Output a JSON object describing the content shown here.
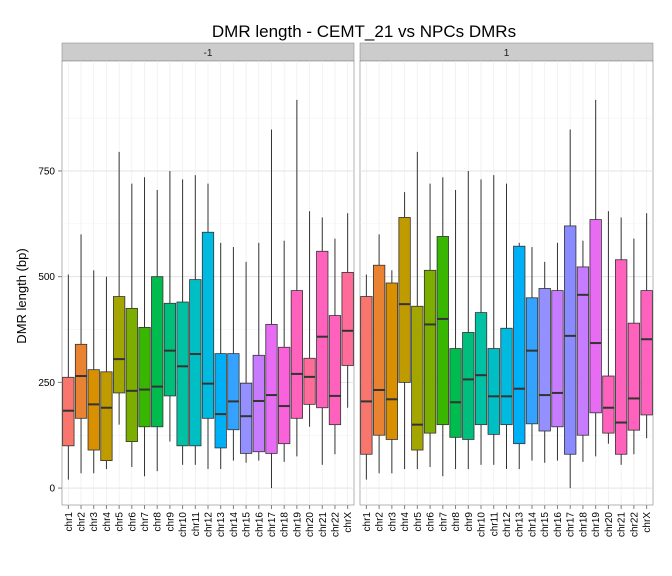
{
  "chart_data": {
    "type": "boxplot",
    "title": "DMR length - CEMT_21 vs NPCs DMRs",
    "xlabel": "",
    "ylabel": "DMR length (bp)",
    "ylim": [
      -40,
      1010
    ],
    "yticks": [
      0,
      250,
      500,
      750
    ],
    "grid": true,
    "facets": [
      {
        "label": "-1",
        "boxes": [
          {
            "category": "chr1",
            "color": "#F8766D",
            "min": 20,
            "q1": 100,
            "median": 183,
            "q3": 262,
            "max": 505
          },
          {
            "category": "chr2",
            "color": "#EA8331",
            "min": 35,
            "q1": 165,
            "median": 265,
            "q3": 340,
            "max": 600
          },
          {
            "category": "chr3",
            "color": "#D89000",
            "min": 35,
            "q1": 90,
            "median": 198,
            "q3": 280,
            "max": 515
          },
          {
            "category": "chr4",
            "color": "#C09B00",
            "min": 45,
            "q1": 65,
            "median": 190,
            "q3": 275,
            "max": 500
          },
          {
            "category": "chr5",
            "color": "#A3A500",
            "min": 150,
            "q1": 225,
            "median": 305,
            "q3": 453,
            "max": 795
          },
          {
            "category": "chr6",
            "color": "#7CAE00",
            "min": 50,
            "q1": 110,
            "median": 230,
            "q3": 425,
            "max": 720
          },
          {
            "category": "chr7",
            "color": "#39B600",
            "min": 28,
            "q1": 145,
            "median": 233,
            "q3": 380,
            "max": 735
          },
          {
            "category": "chr8",
            "color": "#00BB4E",
            "min": 40,
            "q1": 145,
            "median": 240,
            "q3": 500,
            "max": 705
          },
          {
            "category": "chr9",
            "color": "#00BF7D",
            "min": 110,
            "q1": 218,
            "median": 325,
            "q3": 437,
            "max": 750
          },
          {
            "category": "chr10",
            "color": "#00C1A3",
            "min": 55,
            "q1": 100,
            "median": 288,
            "q3": 440,
            "max": 730
          },
          {
            "category": "chr11",
            "color": "#00BFC4",
            "min": 55,
            "q1": 100,
            "median": 317,
            "q3": 493,
            "max": 740
          },
          {
            "category": "chr12",
            "color": "#00BAE0",
            "min": 45,
            "q1": 165,
            "median": 247,
            "q3": 605,
            "max": 720
          },
          {
            "category": "chr13",
            "color": "#00B0F6",
            "min": 45,
            "q1": 95,
            "median": 175,
            "q3": 318,
            "max": 580
          },
          {
            "category": "chr14",
            "color": "#35A2FF",
            "min": 65,
            "q1": 138,
            "median": 205,
            "q3": 318,
            "max": 570
          },
          {
            "category": "chr15",
            "color": "#9590FF",
            "min": 60,
            "q1": 82,
            "median": 170,
            "q3": 248,
            "max": 535
          },
          {
            "category": "chr16",
            "color": "#C77CFF",
            "min": 65,
            "q1": 86,
            "median": 206,
            "q3": 314,
            "max": 580
          },
          {
            "category": "chr17",
            "color": "#E76BF3",
            "min": 0,
            "q1": 82,
            "median": 220,
            "q3": 387,
            "max": 848
          },
          {
            "category": "chr18",
            "color": "#FA62DB",
            "min": 62,
            "q1": 105,
            "median": 194,
            "q3": 333,
            "max": 585
          },
          {
            "category": "chr19",
            "color": "#FF62BC",
            "min": 75,
            "q1": 165,
            "median": 270,
            "q3": 467,
            "max": 918
          },
          {
            "category": "chr20",
            "color": "#FF6C9A",
            "min": 145,
            "q1": 198,
            "median": 263,
            "q3": 307,
            "max": 655
          },
          {
            "category": "chr21",
            "color": "#FF62BC",
            "min": 55,
            "q1": 190,
            "median": 358,
            "q3": 560,
            "max": 640
          },
          {
            "category": "chr22",
            "color": "#FF62BC",
            "min": 80,
            "q1": 150,
            "median": 218,
            "q3": 408,
            "max": 590
          },
          {
            "category": "chrX",
            "color": "#FF6C9A",
            "min": 190,
            "q1": 290,
            "median": 372,
            "q3": 510,
            "max": 650
          }
        ]
      },
      {
        "label": "1",
        "boxes": [
          {
            "category": "chr1",
            "color": "#F8766D",
            "min": 20,
            "q1": 80,
            "median": 205,
            "q3": 453,
            "max": 505
          },
          {
            "category": "chr2",
            "color": "#EA8331",
            "min": 35,
            "q1": 125,
            "median": 232,
            "q3": 527,
            "max": 600
          },
          {
            "category": "chr3",
            "color": "#D89000",
            "min": 35,
            "q1": 115,
            "median": 210,
            "q3": 485,
            "max": 515
          },
          {
            "category": "chr4",
            "color": "#C09B00",
            "min": 45,
            "q1": 250,
            "median": 435,
            "q3": 640,
            "max": 700
          },
          {
            "category": "chr5",
            "color": "#A3A500",
            "min": 45,
            "q1": 90,
            "median": 150,
            "q3": 430,
            "max": 795
          },
          {
            "category": "chr6",
            "color": "#7CAE00",
            "min": 50,
            "q1": 130,
            "median": 387,
            "q3": 515,
            "max": 720
          },
          {
            "category": "chr7",
            "color": "#39B600",
            "min": 28,
            "q1": 150,
            "median": 400,
            "q3": 595,
            "max": 735
          },
          {
            "category": "chr8",
            "color": "#00BB4E",
            "min": 45,
            "q1": 120,
            "median": 203,
            "q3": 330,
            "max": 705
          },
          {
            "category": "chr9",
            "color": "#00BF7D",
            "min": 45,
            "q1": 115,
            "median": 257,
            "q3": 368,
            "max": 750
          },
          {
            "category": "chr10",
            "color": "#00C1A3",
            "min": 55,
            "q1": 150,
            "median": 267,
            "q3": 415,
            "max": 730
          },
          {
            "category": "chr11",
            "color": "#00BFC4",
            "min": 55,
            "q1": 127,
            "median": 217,
            "q3": 330,
            "max": 740
          },
          {
            "category": "chr12",
            "color": "#00BAE0",
            "min": 45,
            "q1": 150,
            "median": 217,
            "q3": 378,
            "max": 720
          },
          {
            "category": "chr13",
            "color": "#00B0F6",
            "min": 45,
            "q1": 105,
            "median": 235,
            "q3": 572,
            "max": 580
          },
          {
            "category": "chr14",
            "color": "#35A2FF",
            "min": 65,
            "q1": 152,
            "median": 325,
            "q3": 450,
            "max": 570
          },
          {
            "category": "chr15",
            "color": "#9590FF",
            "min": 60,
            "q1": 135,
            "median": 220,
            "q3": 472,
            "max": 535
          },
          {
            "category": "chr16",
            "color": "#C77CFF",
            "min": 65,
            "q1": 145,
            "median": 225,
            "q3": 467,
            "max": 580
          },
          {
            "category": "chr17",
            "color": "#8A8BFF",
            "min": 0,
            "q1": 80,
            "median": 360,
            "q3": 620,
            "max": 848
          },
          {
            "category": "chr18",
            "color": "#C77CFF",
            "min": 62,
            "q1": 125,
            "median": 457,
            "q3": 523,
            "max": 585
          },
          {
            "category": "chr19",
            "color": "#E76BF3",
            "min": 75,
            "q1": 178,
            "median": 343,
            "q3": 635,
            "max": 918
          },
          {
            "category": "chr20",
            "color": "#FF62BC",
            "min": 105,
            "q1": 130,
            "median": 190,
            "q3": 265,
            "max": 655
          },
          {
            "category": "chr21",
            "color": "#FF62BC",
            "min": 55,
            "q1": 80,
            "median": 155,
            "q3": 540,
            "max": 640
          },
          {
            "category": "chr22",
            "color": "#FF62BC",
            "min": 80,
            "q1": 137,
            "median": 212,
            "q3": 390,
            "max": 590
          },
          {
            "category": "chrX",
            "color": "#FF62BC",
            "min": 118,
            "q1": 173,
            "median": 352,
            "q3": 467,
            "max": 650
          }
        ]
      }
    ]
  }
}
